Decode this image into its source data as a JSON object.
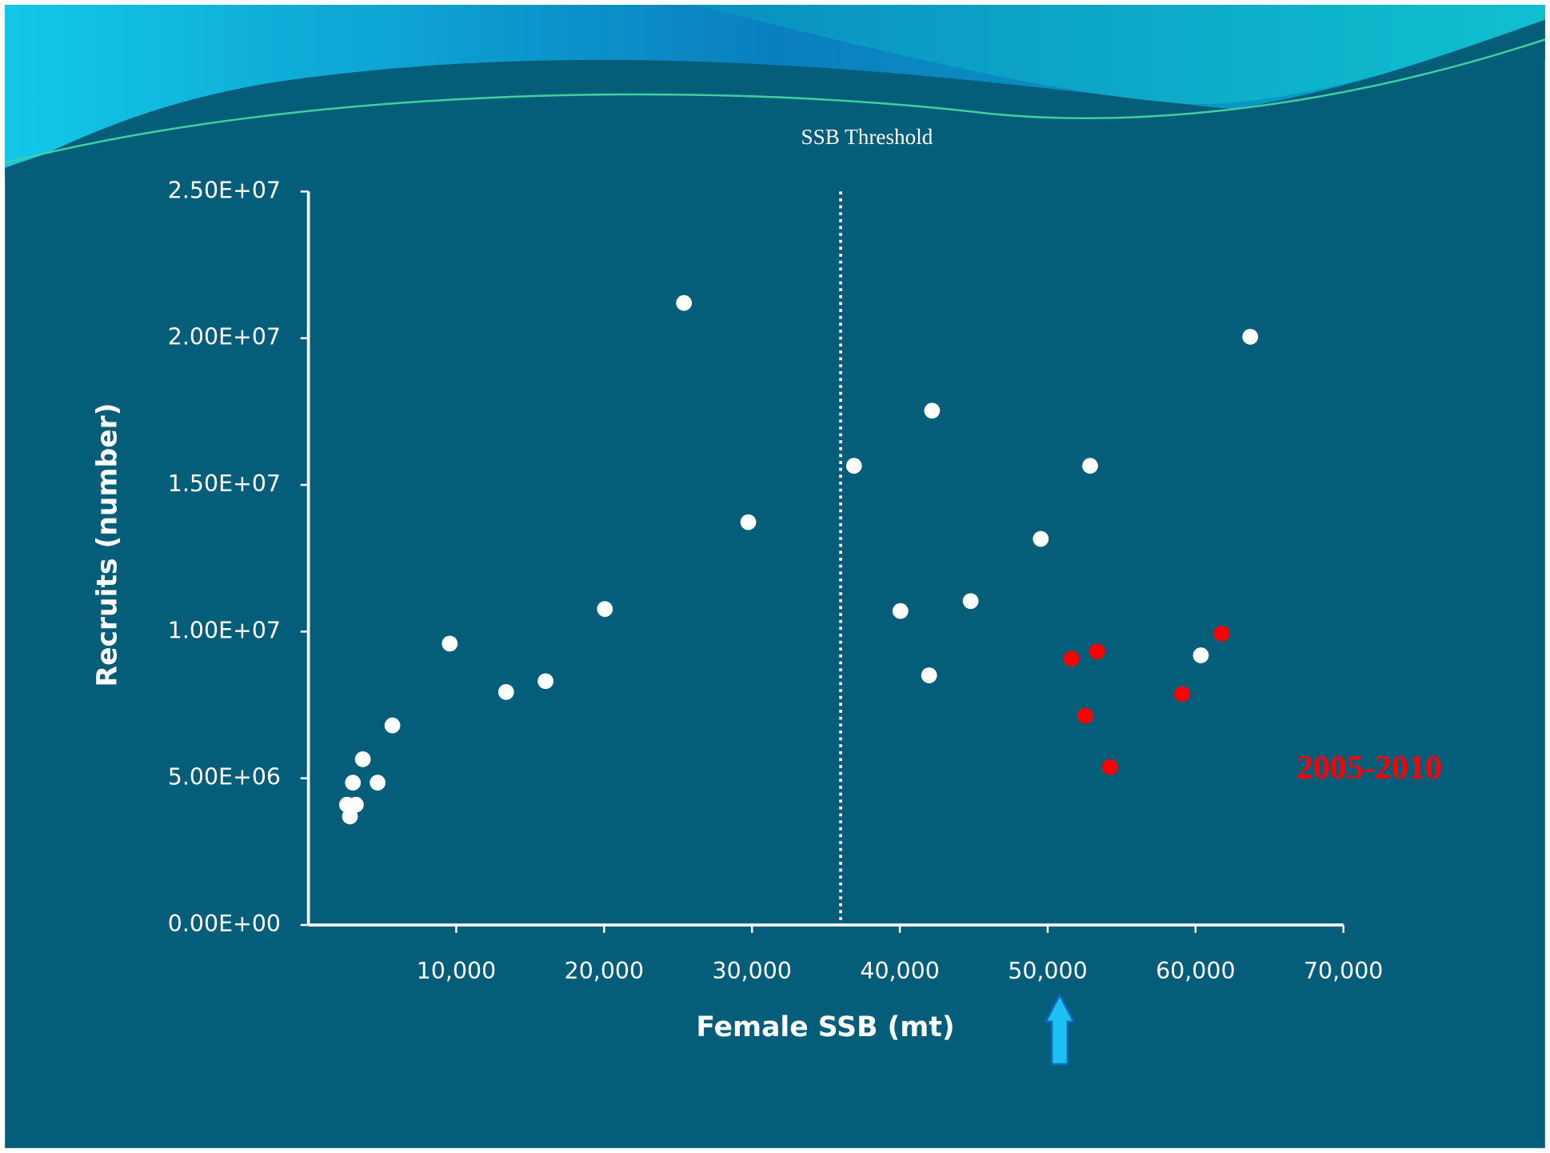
{
  "chart_data": {
    "type": "scatter",
    "x_label": "Female SSB (mt)",
    "y_label": "Recruits (number)",
    "series": [
      {
        "color": "#ffffff",
        "x": [
          25400,
          29750,
          20050,
          16040,
          13370,
          9560,
          5680,
          3680,
          4680,
          3010,
          3210,
          2610,
          2810,
          36900,
          42180,
          40040,
          41980,
          44790,
          49530,
          52870,
          63700,
          60360
        ],
        "values": [
          21200000,
          13730000,
          10770000,
          8310000,
          7940000,
          9590000,
          6800000,
          5650000,
          4850000,
          4850000,
          4100000,
          4100000,
          3700000,
          15650000,
          17530000,
          10700000,
          8510000,
          11040000,
          13160000,
          15650000,
          20050000,
          9190000
        ]
      },
      {
        "color": "#ff0000",
        "x": [
          51600,
          53340,
          52540,
          54210,
          59090,
          61760
        ],
        "values": [
          9080000,
          9320000,
          7130000,
          5380000,
          7870000,
          9930000
        ]
      }
    ],
    "xlim": [
      0,
      70000
    ],
    "xticks": [
      {
        "value": 10000,
        "label": "10,000"
      },
      {
        "value": 20000,
        "label": "20,000"
      },
      {
        "value": 30000,
        "label": "30,000"
      },
      {
        "value": 40000,
        "label": "40,000"
      },
      {
        "value": 50000,
        "label": "50,000"
      },
      {
        "value": 60000,
        "label": "60,000"
      },
      {
        "value": 70000,
        "label": "70,000"
      }
    ],
    "ylim": [
      0,
      25000000
    ],
    "yticks": [
      {
        "value": 0,
        "label": "0.00E+00"
      },
      {
        "value": 5000000,
        "label": "5.00E+06"
      },
      {
        "value": 10000000,
        "label": "1.00E+07"
      },
      {
        "value": 15000000,
        "label": "1.50E+07"
      },
      {
        "value": 20000000,
        "label": "2.00E+07"
      },
      {
        "value": 25000000,
        "label": "2.50E+07"
      }
    ],
    "threshold": {
      "x": 36000,
      "label": "SSB Threshold"
    },
    "annotation": {
      "text": "2005-2010",
      "color": "#ff0000"
    }
  }
}
